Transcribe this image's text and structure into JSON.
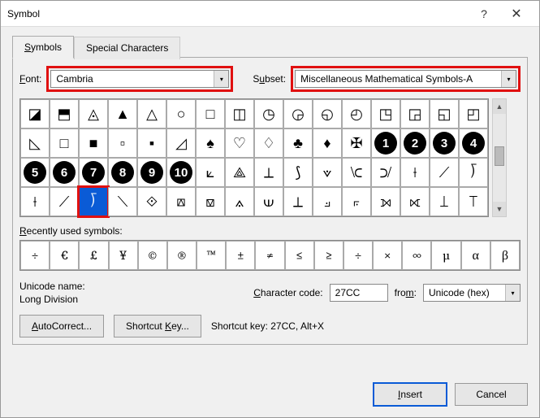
{
  "window": {
    "title": "Symbol"
  },
  "tabs": {
    "symbols": "Symbols",
    "special": "Special Characters"
  },
  "font": {
    "label": "Font:",
    "value": "Cambria"
  },
  "subset": {
    "label": "Subset:",
    "value": "Miscellaneous Mathematical Symbols-A"
  },
  "colors": {
    "highlight_border": "#e01010",
    "selection_bg": "#0a5bd6"
  },
  "grid": {
    "cols": 16,
    "rows": 4,
    "selected_index": 50,
    "cells": [
      "◪",
      "⬒",
      "◬",
      "▲",
      "△",
      "○",
      "□",
      "◫",
      "◷",
      "◶",
      "◵",
      "◴",
      "◳",
      "◲",
      "◱",
      "◰",
      "◺",
      "□",
      "■",
      "▫",
      "▪",
      "◿",
      "♠",
      "♡",
      "♢",
      "♣",
      "♦",
      "✠",
      "➊",
      "➋",
      "➌",
      "➍",
      "➎",
      "➏",
      "➐",
      "➑",
      "➒",
      "➓",
      "⟀",
      "⟁",
      "⟂",
      "⟆",
      "⟇",
      "⟈",
      "⟉",
      "⟊",
      "⟋",
      "⟌",
      "⟊",
      "⟋",
      "⟌",
      "⟍",
      "⟐",
      "⟎",
      "⟏",
      "⟑",
      "⟒",
      "⟂",
      "⟓",
      "⟔",
      "⟕",
      "⟖",
      "⟘",
      "⟙"
    ],
    "black_circle_indices": [
      28,
      29,
      30,
      31,
      32,
      33,
      34,
      35,
      36,
      37
    ],
    "black_circle_labels": [
      "1",
      "2",
      "3",
      "4",
      "5",
      "6",
      "7",
      "8",
      "9",
      "10"
    ]
  },
  "recent": {
    "label": "Recently used symbols:",
    "cells": [
      "÷",
      "€",
      "£",
      "¥",
      "©",
      "®",
      "™",
      "±",
      "≠",
      "≤",
      "≥",
      "÷",
      "×",
      "∞",
      "µ",
      "α",
      "β"
    ]
  },
  "unicode": {
    "name_label": "Unicode name:",
    "name_value": "Long Division"
  },
  "char_code": {
    "label": "Character code:",
    "value": "27CC"
  },
  "from": {
    "label": "from:",
    "value": "Unicode (hex)"
  },
  "buttons": {
    "autocorrect": "AutoCorrect...",
    "shortcut": "Shortcut Key...",
    "shortcut_info": "Shortcut key: 27CC, Alt+X",
    "insert": "Insert",
    "cancel": "Cancel"
  }
}
